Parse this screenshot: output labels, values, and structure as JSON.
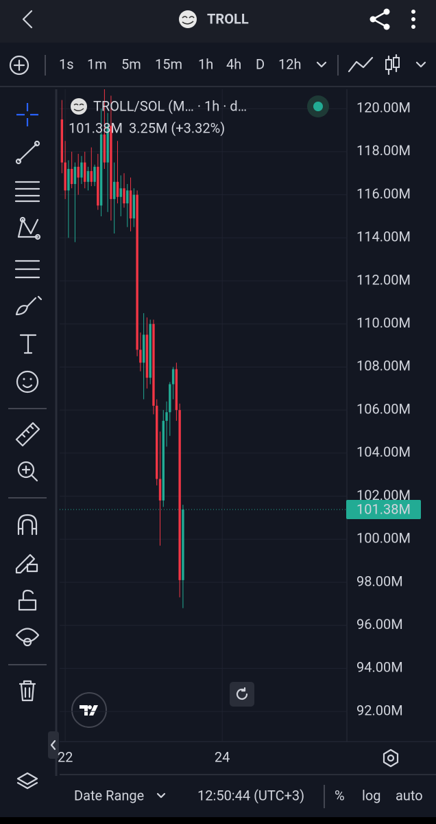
{
  "header": {
    "title": "TROLL"
  },
  "timeframes": {
    "items": [
      "1s",
      "1m",
      "5m",
      "15m",
      "1h",
      "4h",
      "D",
      "12h"
    ],
    "active": 4
  },
  "legend": {
    "symbol": "TROLL/SOL (M… · 1h · d…",
    "price": "101.38M",
    "change": "3.25M (+3.32%)"
  },
  "bottom_bar": {
    "date_range": "Date Range",
    "time": "12:50:44 (UTC+3)",
    "percent": "%",
    "log": "log",
    "auto": "auto"
  },
  "chart_data": {
    "type": "candlestick",
    "x": [
      -1,
      0,
      1,
      2,
      3,
      4,
      5,
      6,
      7,
      8,
      9,
      10,
      11,
      12,
      13,
      14,
      15,
      16,
      17,
      18,
      19,
      20,
      21,
      22,
      23,
      24,
      25,
      26,
      27,
      28,
      29,
      30,
      31,
      32,
      33,
      34,
      35,
      36
    ],
    "open": [
      119.5,
      117.5,
      116.2,
      117.2,
      116.5,
      117.3,
      116.8,
      117.5,
      116.6,
      117.1,
      116.6,
      117.3,
      115.5,
      118.8,
      117.5,
      119.2,
      115.8,
      116.6,
      115.9,
      116.3,
      115.6,
      116.2,
      114.9,
      116,
      108.8,
      108.2,
      109.5,
      107.5,
      110,
      106.2,
      102.8,
      101.8,
      105.5,
      105.9,
      107.2,
      107.9,
      106,
      98.1
    ],
    "high": [
      120.4,
      118.5,
      117.6,
      118,
      117.5,
      117.9,
      117.8,
      118,
      117.3,
      118.2,
      117.4,
      117.9,
      120,
      120.9,
      119.8,
      120.6,
      117.5,
      118.5,
      116.9,
      117,
      116.5,
      116.8,
      116.3,
      116.2,
      109.6,
      110.5,
      110.3,
      110.2,
      110.2,
      106.5,
      105,
      106,
      106.4,
      107.3,
      108,
      108.2,
      106.3,
      101.6
    ],
    "low": [
      117,
      115.8,
      114,
      116.3,
      113.8,
      116,
      116.5,
      116.3,
      116.2,
      116.4,
      116.4,
      115.3,
      115,
      117.2,
      115.2,
      114.8,
      114.2,
      115.6,
      115,
      115.4,
      114.5,
      114.3,
      114.5,
      108.5,
      107.8,
      106.5,
      107,
      107.2,
      105.8,
      102.5,
      99.7,
      101.5,
      104.3,
      104.8,
      106.5,
      105.5,
      97.3,
      96.8
    ],
    "close": [
      117.5,
      116.2,
      117.2,
      116.5,
      117.3,
      116.8,
      117.5,
      116.6,
      117.1,
      116.6,
      117.3,
      115.5,
      118.8,
      117.5,
      119.2,
      115.8,
      116.6,
      115.9,
      116.3,
      115.6,
      116.2,
      114.9,
      116,
      108.8,
      108.2,
      109.5,
      107.5,
      110,
      106.2,
      102.8,
      101.8,
      105.5,
      105.9,
      107.2,
      107.9,
      106,
      98.1,
      101.38
    ],
    "up_color": "#22ab94",
    "down_color": "#f23645",
    "xlim": [
      -1.7,
      86.1
    ],
    "xticks": [
      {
        "value": 0,
        "label": "22"
      },
      {
        "value": 48,
        "label": "24"
      }
    ],
    "ylim": [
      90.6,
      120.9
    ],
    "yticks": [
      {
        "value": 92,
        "label": "92.00M"
      },
      {
        "value": 94,
        "label": "94.00M"
      },
      {
        "value": 96,
        "label": "96.00M"
      },
      {
        "value": 98,
        "label": "98.00M"
      },
      {
        "value": 100,
        "label": "100.00M"
      },
      {
        "value": 102,
        "label": "102.00M"
      },
      {
        "value": 104,
        "label": "104.00M"
      },
      {
        "value": 106,
        "label": "106.00M"
      },
      {
        "value": 108,
        "label": "108.00M"
      },
      {
        "value": 110,
        "label": "110.00M"
      },
      {
        "value": 112,
        "label": "112.00M"
      },
      {
        "value": 114,
        "label": "114.00M"
      },
      {
        "value": 116,
        "label": "116.00M"
      },
      {
        "value": 118,
        "label": "118.00M"
      },
      {
        "value": 120,
        "label": "120.00M"
      }
    ],
    "last_price": {
      "value": 101.38,
      "label": "101.38M"
    },
    "grid": true
  }
}
